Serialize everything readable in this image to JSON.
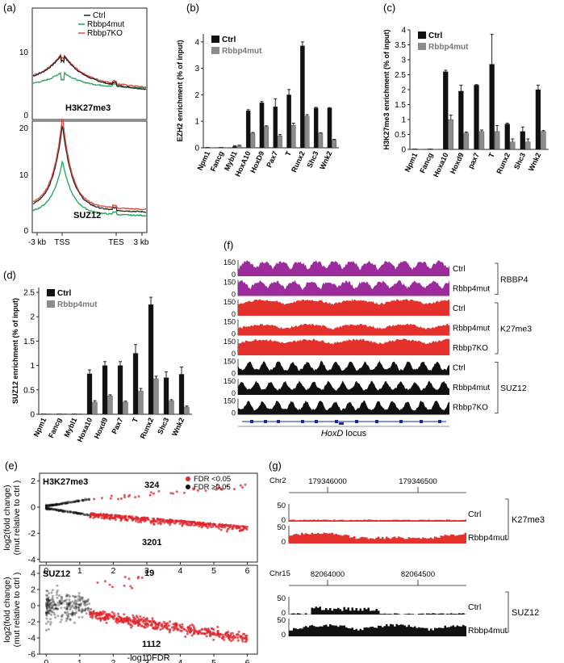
{
  "panel_labels": {
    "a": "(a)",
    "b": "(b)",
    "c": "(c)",
    "d": "(d)",
    "e": "(e)",
    "f": "(f)",
    "g": "(g)"
  },
  "colors": {
    "ctrl": "#222222",
    "rbbp4mut": "#22a05a",
    "rbbp7ko": "#d9483b",
    "bar_ctrl": "#111111",
    "bar_mut": "#8c8c8c",
    "scatter_red": "#e0262c",
    "scatter_black": "#111111",
    "purple": "#9c2c9b",
    "red_track": "#e5312c",
    "black_track": "#111111"
  },
  "panel_a": {
    "legend": [
      "Ctrl",
      "Rbbp4mut",
      "Rbbp7KO"
    ],
    "top": {
      "label": "H3K27me3",
      "yticks": [
        "10",
        "0"
      ]
    },
    "bottom": {
      "label": "SUZ12",
      "yticks": [
        "20",
        "10",
        "0"
      ]
    },
    "xticks": [
      "-3 kb",
      "TSS",
      "TES",
      "3 kb"
    ]
  },
  "chart_data": [
    {
      "id": "b",
      "type": "bar",
      "ylabel": "EZH2 enrichment (% of input)",
      "categories": [
        "Npm1",
        "Fancg",
        "Mybl1",
        "HoxA10",
        "HoxD9",
        "Pax7",
        "T",
        "Runx2",
        "Shc3",
        "Wnk2"
      ],
      "series": [
        {
          "name": "Ctrl",
          "values": [
            0.02,
            0.02,
            0.05,
            1.4,
            1.7,
            1.55,
            2.0,
            3.85,
            1.5,
            1.5
          ]
        },
        {
          "name": "Rbbp4mut",
          "values": [
            0.01,
            0.01,
            0.08,
            0.55,
            0.8,
            0.45,
            0.85,
            1.2,
            0.55,
            0.3
          ]
        }
      ],
      "errors": [
        [
          0,
          0,
          0.03,
          0.04,
          0.05,
          0.3,
          0.2,
          0.15,
          0.03,
          0.02
        ],
        [
          0,
          0,
          0.02,
          0.03,
          0.03,
          0.05,
          0.08,
          0.05,
          0.02,
          0.02
        ]
      ],
      "ylim": [
        0,
        4.3
      ],
      "yticks": [
        "4",
        "3",
        "2",
        "1",
        "0"
      ],
      "legend": [
        "Ctrl",
        "Rbbp4mut"
      ]
    },
    {
      "id": "c",
      "type": "bar",
      "ylabel": "H3K27me3 enrichment (% of input)",
      "categories": [
        "Npm1",
        "Fancg",
        "Hoxa10",
        "Hoxd9",
        "pax7",
        "T",
        "Runx2",
        "Shc3",
        "Wnk2"
      ],
      "series": [
        {
          "name": "Ctrl",
          "values": [
            0.02,
            0.02,
            2.6,
            1.95,
            2.15,
            2.85,
            0.85,
            0.6,
            2.0
          ]
        },
        {
          "name": "Rbbp4mut",
          "values": [
            0.01,
            0.01,
            1.0,
            0.55,
            0.6,
            0.6,
            0.25,
            0.25,
            0.6
          ]
        }
      ],
      "errors": [
        [
          0,
          0,
          0.05,
          0.2,
          0.02,
          1.0,
          0.03,
          0.15,
          0.15
        ],
        [
          0,
          0,
          0.15,
          0.03,
          0.05,
          0.2,
          0.1,
          0.1,
          0.03
        ]
      ],
      "ylim": [
        0,
        4
      ],
      "yticks": [
        "4",
        "3.5",
        "3",
        "2.5",
        "2",
        "1.5",
        "1",
        "0.5",
        "0"
      ],
      "legend": [
        "Ctrl",
        "Rbbp4mut"
      ]
    },
    {
      "id": "d",
      "type": "bar",
      "ylabel": "SUZ12 enrichment (% of input)",
      "categories": [
        "Npm1",
        "Fancg",
        "Mybl1",
        "Hoxa10",
        "Hoxd9",
        "Pax7",
        "T",
        "Runx2",
        "Shc3",
        "Wnk2"
      ],
      "series": [
        {
          "name": "Ctrl",
          "values": [
            0.01,
            0.01,
            0.01,
            0.83,
            1.0,
            1.0,
            1.25,
            2.25,
            0.75,
            0.82
          ]
        },
        {
          "name": "Rbbp4mut",
          "values": [
            0.01,
            0.01,
            0.01,
            0.25,
            0.38,
            0.25,
            0.48,
            0.73,
            0.28,
            0.15
          ]
        }
      ],
      "errors": [
        [
          0,
          0,
          0,
          0.08,
          0.08,
          0.08,
          0.18,
          0.15,
          0.12,
          0.15
        ],
        [
          0,
          0,
          0,
          0.03,
          0.02,
          0.02,
          0.05,
          0.05,
          0.02,
          0.02
        ]
      ],
      "ylim": [
        0,
        2.6
      ],
      "yticks": [
        "2.5",
        "2",
        "1.5",
        "1",
        "0.5",
        "0"
      ],
      "legend": [
        "Ctrl",
        "Rbbp4mut"
      ]
    },
    {
      "id": "e_top",
      "type": "scatter",
      "title": "H3K27me3",
      "xlabel": "-log10FDR",
      "ylabel": "log2(fold change) (mut relative to ctrl )",
      "xlim": [
        -0.2,
        6.3
      ],
      "ylim": [
        -4.2,
        2.6
      ],
      "xticks": [
        "0",
        "1",
        "2",
        "3",
        "4",
        "5",
        "6"
      ],
      "yticks": [
        "2",
        "0",
        "-2",
        "-4"
      ],
      "counts": {
        "up": "324",
        "down": "3201"
      },
      "legend": [
        "FDR <0.05",
        "FDR ≥0.05"
      ]
    },
    {
      "id": "e_bottom",
      "type": "scatter",
      "title": "SUZ12",
      "xlabel": "-log10FDR",
      "ylabel": "log2(fold change) (mut relative to ctrl )",
      "xlim": [
        -0.2,
        6.3
      ],
      "ylim": [
        -6,
        5
      ],
      "xticks": [
        "0",
        "1",
        "2",
        "3",
        "4",
        "5",
        "6"
      ],
      "yticks": [
        "4",
        "2",
        "0",
        "-2",
        "-4",
        "-6"
      ],
      "counts": {
        "up": "19",
        "down": "1112"
      }
    }
  ],
  "panel_e": {
    "xlabel": "-log10FDR",
    "ylabel1": "log2(fold change)",
    "ylabel2": "(mut relative to ctrl )"
  },
  "panel_f": {
    "tracks": [
      {
        "label": "Ctrl",
        "group": "RBBP4",
        "max": "150",
        "min": "0",
        "color": "purple"
      },
      {
        "label": "Rbbp4mut",
        "group": "RBBP4",
        "max": "150",
        "min": "0",
        "color": "purple"
      },
      {
        "label": "Ctrl",
        "group": "K27me3",
        "max": "150",
        "min": "0",
        "color": "red"
      },
      {
        "label": "Rbbp4mut",
        "group": "K27me3",
        "max": "150",
        "min": "0",
        "color": "red"
      },
      {
        "label": "Rbbp7KO",
        "group": "K27me3",
        "max": "150",
        "min": "0",
        "color": "red"
      },
      {
        "label": "Ctrl",
        "group": "SUZ12",
        "max": "150",
        "min": "0",
        "color": "black"
      },
      {
        "label": "Rbbp4mut",
        "group": "SUZ12",
        "max": "150",
        "min": "0",
        "color": "black"
      },
      {
        "label": "Rbbp7KO",
        "group": "SUZ12",
        "max": "150",
        "min": "0",
        "color": "black"
      }
    ],
    "groups": [
      "RBBP4",
      "K27me3",
      "SUZ12"
    ],
    "locus_italic": "HoxD",
    "locus_rest": " locus"
  },
  "panel_g": {
    "top": {
      "chrom": "Chr2",
      "pos1": "179346000",
      "pos2": "179346500",
      "group": "K27me3",
      "tracks": [
        {
          "label": "Ctrl",
          "max": "50",
          "min": "0"
        },
        {
          "label": "Rbbp4mut",
          "max": "50",
          "min": "0"
        }
      ]
    },
    "bottom": {
      "chrom": "Chr15",
      "pos1": "82064000",
      "pos2": "82064500",
      "group": "SUZ12",
      "tracks": [
        {
          "label": "Ctrl",
          "max": "50",
          "min": "0"
        },
        {
          "label": "Rbbp4mut",
          "max": "50",
          "min": "0"
        }
      ]
    }
  }
}
